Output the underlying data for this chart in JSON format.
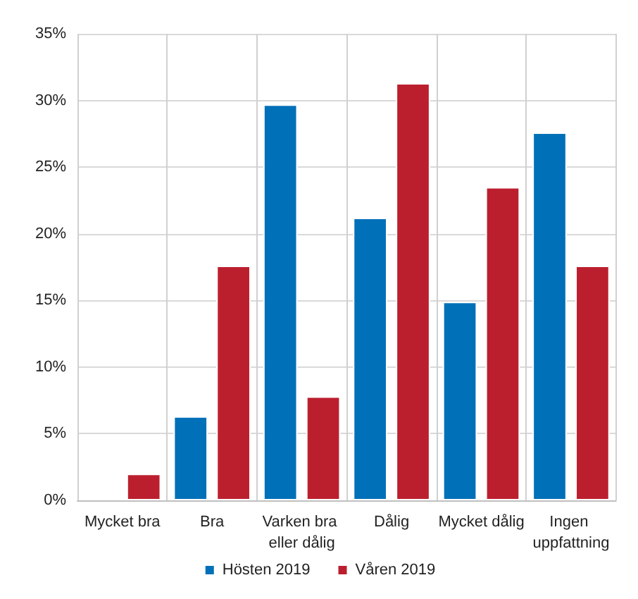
{
  "chart_data": {
    "type": "bar",
    "categories": [
      "Mycket bra",
      "Bra",
      "Varken bra eller dålig",
      "Dålig",
      "Mycket dålig",
      "Ingen uppfattning"
    ],
    "series": [
      {
        "name": "Hösten 2019",
        "color": "#0070b8",
        "values": [
          null,
          6.3,
          29.7,
          21.2,
          14.9,
          27.6
        ]
      },
      {
        "name": "Våren 2019",
        "color": "#bb1f2e",
        "values": [
          2.0,
          17.6,
          7.8,
          31.3,
          23.5,
          17.6
        ]
      }
    ],
    "ylim": [
      0,
      35
    ],
    "yticks": [
      {
        "value": 0,
        "label": "0%"
      },
      {
        "value": 5,
        "label": "5%"
      },
      {
        "value": 10,
        "label": "10%"
      },
      {
        "value": 15,
        "label": "15%"
      },
      {
        "value": 20,
        "label": "20%"
      },
      {
        "value": 25,
        "label": "25%"
      },
      {
        "value": 30,
        "label": "30%"
      },
      {
        "value": 35,
        "label": "35%"
      }
    ],
    "grid": true,
    "legend": "bottom"
  }
}
